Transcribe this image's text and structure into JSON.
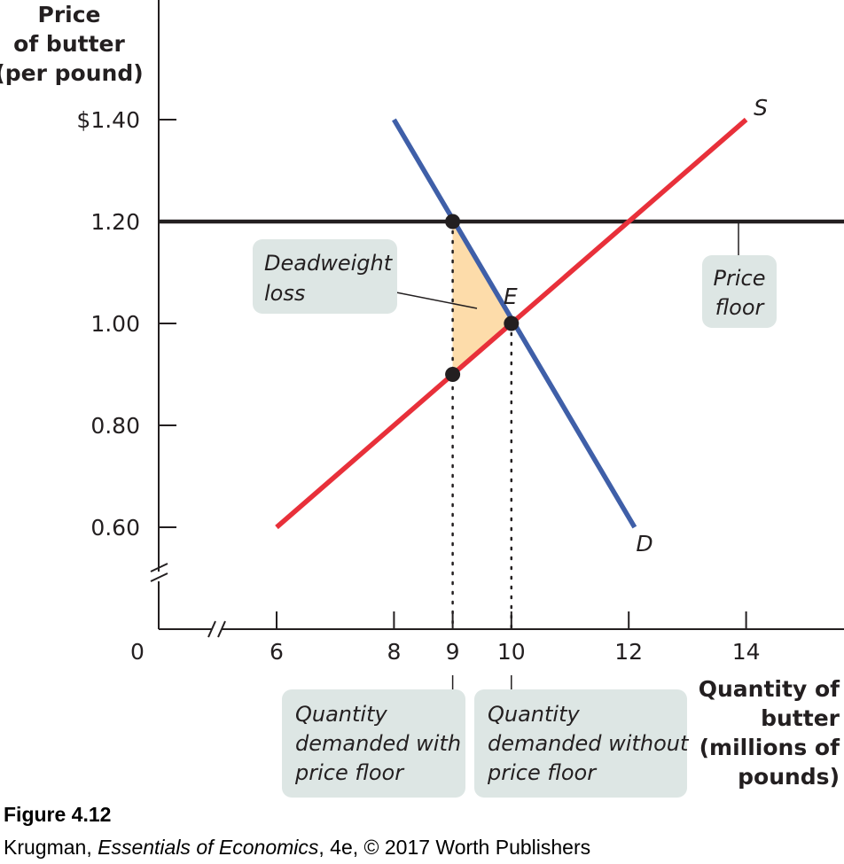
{
  "chart_data": {
    "type": "line",
    "ylabel_lines": [
      "Price",
      "of butter",
      "(per pound)"
    ],
    "xlabel_lines": [
      "Quantity of",
      "butter",
      "(millions of",
      "pounds)"
    ],
    "x_ticks": [
      {
        "value": 6,
        "label": "6"
      },
      {
        "value": 8,
        "label": "8"
      },
      {
        "value": 9,
        "label": "9"
      },
      {
        "value": 10,
        "label": "10"
      },
      {
        "value": 12,
        "label": "12"
      },
      {
        "value": 14,
        "label": "14"
      }
    ],
    "y_ticks": [
      {
        "value": 0.6,
        "label": "0.60"
      },
      {
        "value": 0.8,
        "label": "0.80"
      },
      {
        "value": 1.0,
        "label": "1.00"
      },
      {
        "value": 1.2,
        "label": "1.20"
      },
      {
        "value": 1.4,
        "label": "$1.40"
      }
    ],
    "origin_label": "0",
    "xlim": [
      6,
      15.6
    ],
    "ylim": [
      0.6,
      1.45
    ],
    "axis_breaks": true,
    "series": [
      {
        "name": "S",
        "color": "#e8303a",
        "x": [
          6,
          14
        ],
        "y": [
          0.6,
          1.4
        ]
      },
      {
        "name": "D",
        "color": "#3f5fa8",
        "x": [
          8,
          12.1
        ],
        "y": [
          1.4,
          0.6
        ]
      }
    ],
    "price_floor": {
      "y": 1.2,
      "color": "#231f20",
      "label_lines": [
        "Price",
        "floor"
      ]
    },
    "points": [
      {
        "name": "",
        "x": 9,
        "y": 1.2
      },
      {
        "name": "E",
        "x": 10,
        "y": 1.0
      },
      {
        "name": "",
        "x": 9,
        "y": 0.9
      }
    ],
    "deadweight_loss": {
      "vertices": [
        [
          9,
          1.2
        ],
        [
          10,
          1.0
        ],
        [
          9,
          0.9
        ]
      ],
      "color": "#fddcaa",
      "label_lines": [
        "Deadweight",
        "loss"
      ]
    },
    "dotted_lines": [
      {
        "x": 9,
        "y_top": 1.2
      },
      {
        "x": 10,
        "y_top": 1.0
      }
    ],
    "quantity_boxes": [
      {
        "x": 9,
        "lines": [
          "Quantity",
          "demanded with",
          "price floor"
        ]
      },
      {
        "x": 10,
        "lines": [
          "Quantity",
          "demanded without",
          "price floor"
        ]
      }
    ],
    "box_color": "#dde6e4"
  },
  "caption": {
    "title": "Figure 4.12",
    "credit_author": "Krugman,",
    "credit_book": "Essentials of Economics",
    "credit_rest": ", 4e, © 2017 Worth Publishers"
  }
}
